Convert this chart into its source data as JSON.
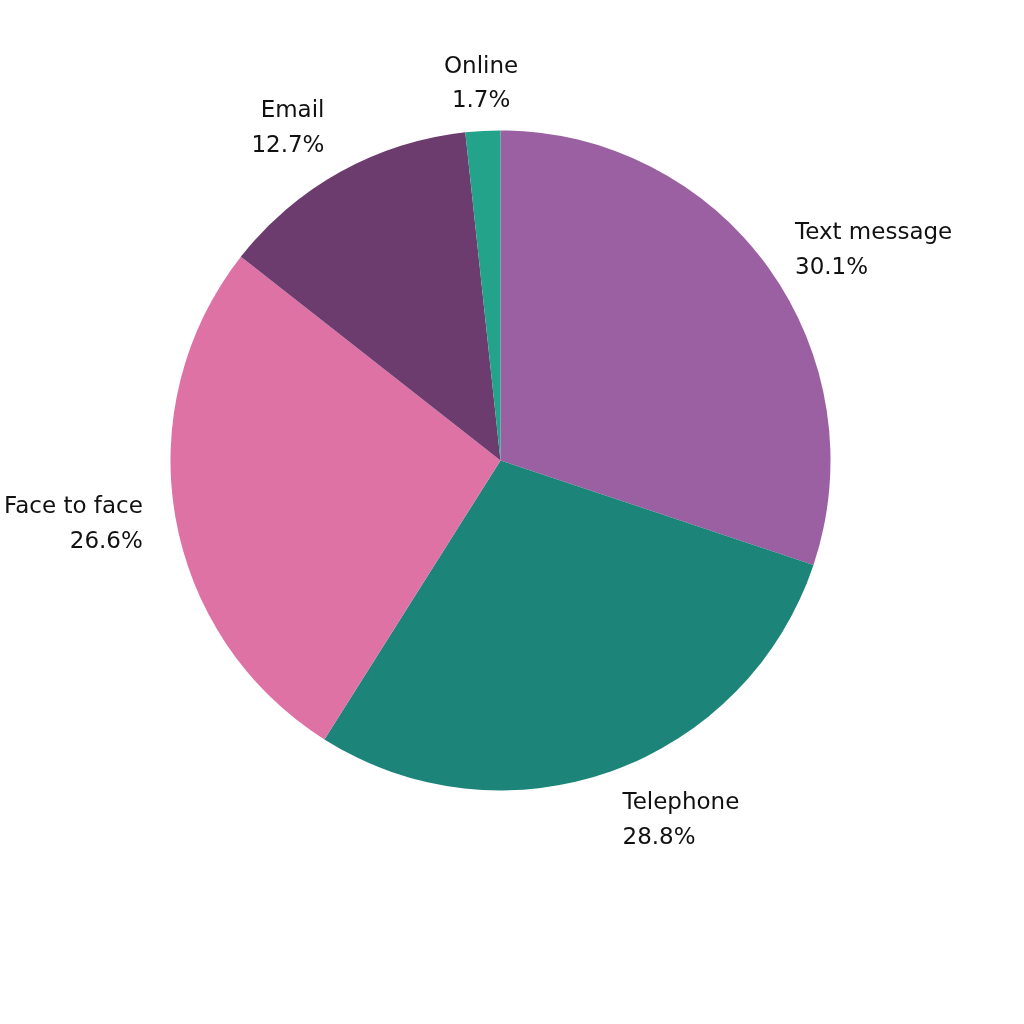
{
  "chart_data": {
    "type": "pie",
    "categories": [
      "Text message",
      "Telephone",
      "Face to face",
      "Email",
      "Online"
    ],
    "values": [
      30.1,
      28.8,
      26.6,
      12.7,
      1.7
    ],
    "value_labels": [
      "30.1%",
      "28.8%",
      "26.6%",
      "12.7%",
      "1.7%"
    ],
    "colors": [
      "#9b60a1",
      "#1c8478",
      "#de72a5",
      "#6b3c6d",
      "#24a38b"
    ]
  }
}
